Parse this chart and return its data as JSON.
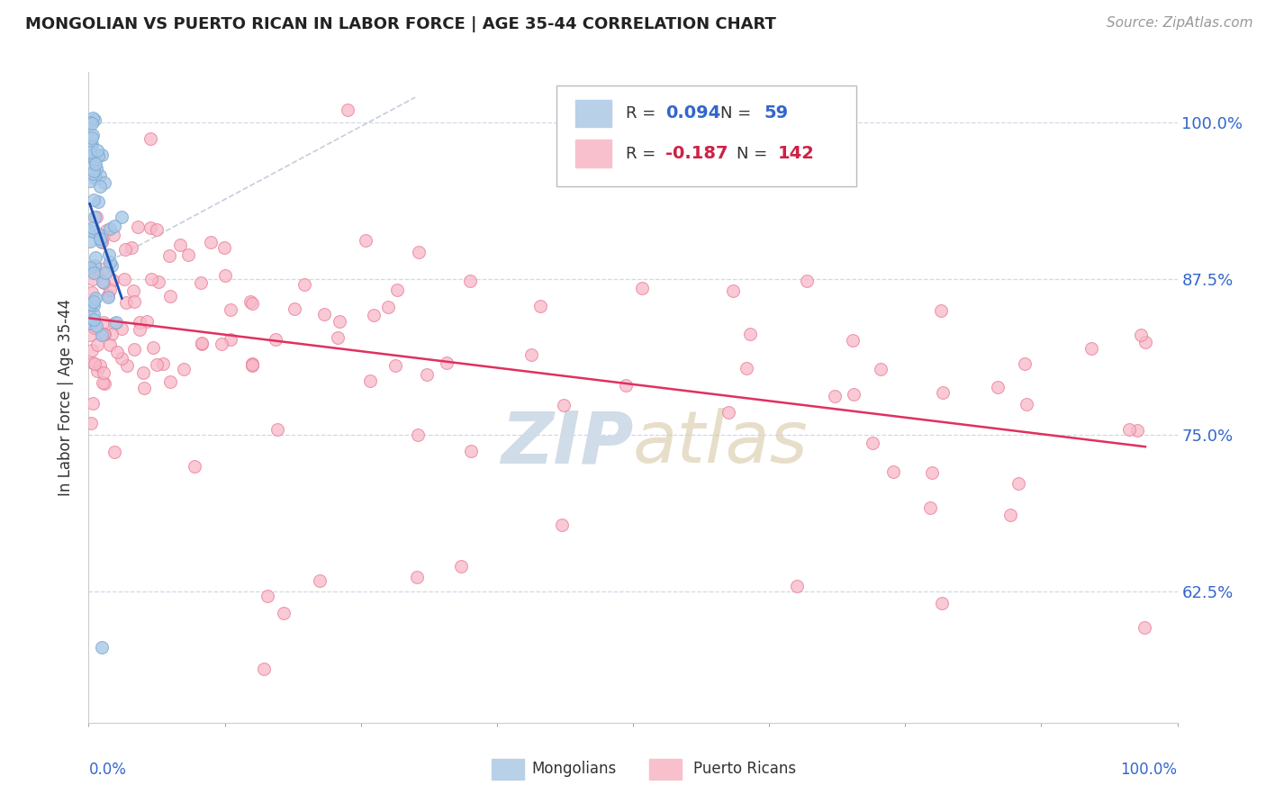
{
  "title": "MONGOLIAN VS PUERTO RICAN IN LABOR FORCE | AGE 35-44 CORRELATION CHART",
  "source": "Source: ZipAtlas.com",
  "ylabel": "In Labor Force | Age 35-44",
  "y_tick_values": [
    0.625,
    0.75,
    0.875,
    1.0
  ],
  "xlim": [
    0.0,
    1.0
  ],
  "ylim": [
    0.52,
    1.04
  ],
  "mongolian_R": 0.094,
  "mongolian_N": 59,
  "puerto_rican_R": -0.187,
  "puerto_rican_N": 142,
  "mongolian_color": "#a8c8e8",
  "mongolian_edge": "#80aad0",
  "puerto_rican_color": "#f8b8c8",
  "puerto_rican_edge": "#e88098",
  "mongolian_trend_color": "#2050b0",
  "puerto_rican_trend_color": "#e03060",
  "ref_line_color": "#c0c8d8",
  "grid_color": "#d0d8e8",
  "legend_blue_fill": "#b8d0e8",
  "legend_pink_fill": "#f8c0cc",
  "watermark_color": "#d0dce8",
  "title_color": "#222222",
  "source_color": "#999999",
  "axis_label_color": "#333333",
  "right_tick_color": "#3366cc"
}
